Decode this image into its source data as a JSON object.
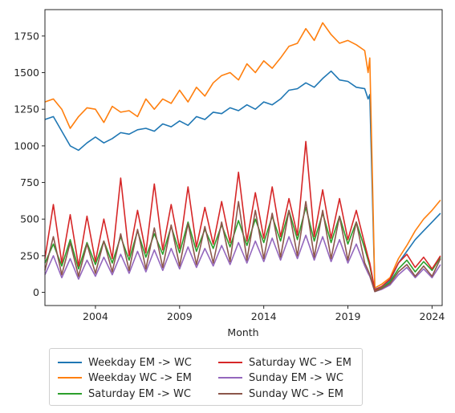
{
  "chart_data": {
    "type": "line",
    "title": "",
    "xlabel": "Month",
    "ylabel": "",
    "xlim": [
      2001.0,
      2024.6
    ],
    "ylim": [
      -90,
      1930
    ],
    "xticks": [
      {
        "value": 2004,
        "label": "2004"
      },
      {
        "value": 2009,
        "label": "2009"
      },
      {
        "value": 2014,
        "label": "2014"
      },
      {
        "value": 2019,
        "label": "2019"
      },
      {
        "value": 2024,
        "label": "2024"
      }
    ],
    "yticks": [
      0,
      250,
      500,
      750,
      1000,
      1250,
      1500,
      1750
    ],
    "grid": false,
    "legend_position": "below-left",
    "legend_columns": 2,
    "series": [
      {
        "name": "Weekday EM -> WC",
        "color": "#1f77b4",
        "x": [
          2001.0,
          2001.5,
          2002.0,
          2002.5,
          2003.0,
          2003.5,
          2004.0,
          2004.5,
          2005.0,
          2005.5,
          2006.0,
          2006.5,
          2007.0,
          2007.5,
          2008.0,
          2008.5,
          2009.0,
          2009.5,
          2010.0,
          2010.5,
          2011.0,
          2011.5,
          2012.0,
          2012.5,
          2013.0,
          2013.5,
          2014.0,
          2014.5,
          2015.0,
          2015.5,
          2016.0,
          2016.5,
          2017.0,
          2017.5,
          2018.0,
          2018.5,
          2019.0,
          2019.5,
          2020.0,
          2020.2,
          2020.3,
          2020.6,
          2021.0,
          2021.5,
          2022.0,
          2022.5,
          2023.0,
          2023.5,
          2024.0,
          2024.5
        ],
        "y": [
          1180,
          1200,
          1100,
          1000,
          970,
          1020,
          1060,
          1020,
          1050,
          1090,
          1080,
          1110,
          1120,
          1100,
          1150,
          1130,
          1170,
          1140,
          1200,
          1180,
          1230,
          1220,
          1260,
          1240,
          1280,
          1250,
          1300,
          1280,
          1320,
          1380,
          1390,
          1430,
          1400,
          1460,
          1510,
          1450,
          1440,
          1400,
          1390,
          1320,
          1350,
          20,
          40,
          80,
          200,
          280,
          360,
          420,
          480,
          540
        ]
      },
      {
        "name": "Weekday WC -> EM",
        "color": "#ff7f0e",
        "x": [
          2001.0,
          2001.5,
          2002.0,
          2002.5,
          2003.0,
          2003.5,
          2004.0,
          2004.5,
          2005.0,
          2005.5,
          2006.0,
          2006.5,
          2007.0,
          2007.5,
          2008.0,
          2008.5,
          2009.0,
          2009.5,
          2010.0,
          2010.5,
          2011.0,
          2011.5,
          2012.0,
          2012.5,
          2013.0,
          2013.5,
          2014.0,
          2014.5,
          2015.0,
          2015.5,
          2016.0,
          2016.5,
          2017.0,
          2017.5,
          2018.0,
          2018.5,
          2019.0,
          2019.5,
          2020.0,
          2020.2,
          2020.3,
          2020.6,
          2021.0,
          2021.5,
          2022.0,
          2022.5,
          2023.0,
          2023.5,
          2024.0,
          2024.5
        ],
        "y": [
          1300,
          1320,
          1250,
          1120,
          1200,
          1260,
          1250,
          1160,
          1270,
          1230,
          1240,
          1200,
          1320,
          1250,
          1320,
          1290,
          1380,
          1300,
          1400,
          1340,
          1430,
          1480,
          1500,
          1450,
          1560,
          1500,
          1580,
          1530,
          1600,
          1680,
          1700,
          1800,
          1720,
          1840,
          1760,
          1700,
          1720,
          1690,
          1650,
          1500,
          1600,
          30,
          55,
          100,
          230,
          320,
          420,
          500,
          560,
          630
        ]
      },
      {
        "name": "Saturday EM -> WC",
        "color": "#2ca02c",
        "x": [
          2001.0,
          2001.5,
          2002.0,
          2002.5,
          2003.0,
          2003.5,
          2004.0,
          2004.5,
          2005.0,
          2005.5,
          2006.0,
          2006.5,
          2007.0,
          2007.5,
          2008.0,
          2008.5,
          2009.0,
          2009.5,
          2010.0,
          2010.5,
          2011.0,
          2011.5,
          2012.0,
          2012.5,
          2013.0,
          2013.5,
          2014.0,
          2014.5,
          2015.0,
          2015.5,
          2016.0,
          2016.5,
          2017.0,
          2017.5,
          2018.0,
          2018.5,
          2019.0,
          2019.5,
          2020.0,
          2020.2,
          2020.3,
          2020.6,
          2021.0,
          2021.5,
          2022.0,
          2022.5,
          2023.0,
          2023.5,
          2024.0,
          2024.5
        ],
        "y": [
          200,
          330,
          180,
          360,
          160,
          340,
          190,
          350,
          200,
          380,
          220,
          420,
          240,
          400,
          260,
          450,
          270,
          480,
          280,
          430,
          300,
          460,
          310,
          490,
          320,
          500,
          340,
          520,
          350,
          560,
          360,
          580,
          350,
          540,
          340,
          520,
          330,
          480,
          300,
          220,
          180,
          10,
          30,
          70,
          160,
          220,
          140,
          210,
          150,
          240
        ]
      },
      {
        "name": "Saturday WC -> EM",
        "color": "#d62728",
        "x": [
          2001.0,
          2001.5,
          2002.0,
          2002.5,
          2003.0,
          2003.5,
          2004.0,
          2004.5,
          2005.0,
          2005.5,
          2006.0,
          2006.5,
          2007.0,
          2007.5,
          2008.0,
          2008.5,
          2009.0,
          2009.5,
          2010.0,
          2010.5,
          2011.0,
          2011.5,
          2012.0,
          2012.5,
          2013.0,
          2013.5,
          2014.0,
          2014.5,
          2015.0,
          2015.5,
          2016.0,
          2016.5,
          2017.0,
          2017.5,
          2018.0,
          2018.5,
          2019.0,
          2019.5,
          2020.0,
          2020.2,
          2020.3,
          2020.6,
          2021.0,
          2021.5,
          2022.0,
          2022.5,
          2023.0,
          2023.5,
          2024.0,
          2024.5
        ],
        "y": [
          230,
          600,
          200,
          530,
          180,
          520,
          210,
          500,
          230,
          780,
          250,
          560,
          270,
          740,
          290,
          600,
          300,
          720,
          310,
          580,
          330,
          620,
          340,
          820,
          350,
          680,
          370,
          720,
          380,
          640,
          390,
          1030,
          380,
          700,
          370,
          640,
          360,
          560,
          330,
          240,
          200,
          15,
          40,
          90,
          200,
          260,
          170,
          240,
          160,
          250
        ]
      },
      {
        "name": "Sunday EM -> WC",
        "color": "#9467bd",
        "x": [
          2001.0,
          2001.5,
          2002.0,
          2002.5,
          2003.0,
          2003.5,
          2004.0,
          2004.5,
          2005.0,
          2005.5,
          2006.0,
          2006.5,
          2007.0,
          2007.5,
          2008.0,
          2008.5,
          2009.0,
          2009.5,
          2010.0,
          2010.5,
          2011.0,
          2011.5,
          2012.0,
          2012.5,
          2013.0,
          2013.5,
          2014.0,
          2014.5,
          2015.0,
          2015.5,
          2016.0,
          2016.5,
          2017.0,
          2017.5,
          2018.0,
          2018.5,
          2019.0,
          2019.5,
          2020.0,
          2020.2,
          2020.3,
          2020.6,
          2021.0,
          2021.5,
          2022.0,
          2022.5,
          2023.0,
          2023.5,
          2024.0,
          2024.5
        ],
        "y": [
          120,
          250,
          100,
          230,
          90,
          220,
          110,
          240,
          120,
          260,
          130,
          280,
          140,
          290,
          150,
          300,
          160,
          310,
          170,
          300,
          180,
          320,
          190,
          340,
          200,
          350,
          210,
          370,
          220,
          380,
          230,
          390,
          220,
          380,
          210,
          360,
          200,
          330,
          180,
          130,
          110,
          5,
          20,
          50,
          120,
          170,
          100,
          160,
          100,
          190
        ]
      },
      {
        "name": "Sunday WC -> EM",
        "color": "#8c564b",
        "x": [
          2001.0,
          2001.5,
          2002.0,
          2002.5,
          2003.0,
          2003.5,
          2004.0,
          2004.5,
          2005.0,
          2005.5,
          2006.0,
          2006.5,
          2007.0,
          2007.5,
          2008.0,
          2008.5,
          2009.0,
          2009.5,
          2010.0,
          2010.5,
          2011.0,
          2011.5,
          2012.0,
          2012.5,
          2013.0,
          2013.5,
          2014.0,
          2014.5,
          2015.0,
          2015.5,
          2016.0,
          2016.5,
          2017.0,
          2017.5,
          2018.0,
          2018.5,
          2019.0,
          2019.5,
          2020.0,
          2020.2,
          2020.3,
          2020.6,
          2021.0,
          2021.5,
          2022.0,
          2022.5,
          2023.0,
          2023.5,
          2024.0,
          2024.5
        ],
        "y": [
          150,
          380,
          120,
          340,
          110,
          330,
          130,
          350,
          140,
          400,
          150,
          430,
          160,
          440,
          170,
          460,
          180,
          470,
          190,
          450,
          200,
          480,
          210,
          620,
          220,
          560,
          230,
          540,
          240,
          560,
          250,
          620,
          240,
          560,
          230,
          520,
          220,
          480,
          200,
          150,
          120,
          5,
          25,
          60,
          140,
          190,
          110,
          180,
          110,
          230
        ]
      }
    ]
  }
}
